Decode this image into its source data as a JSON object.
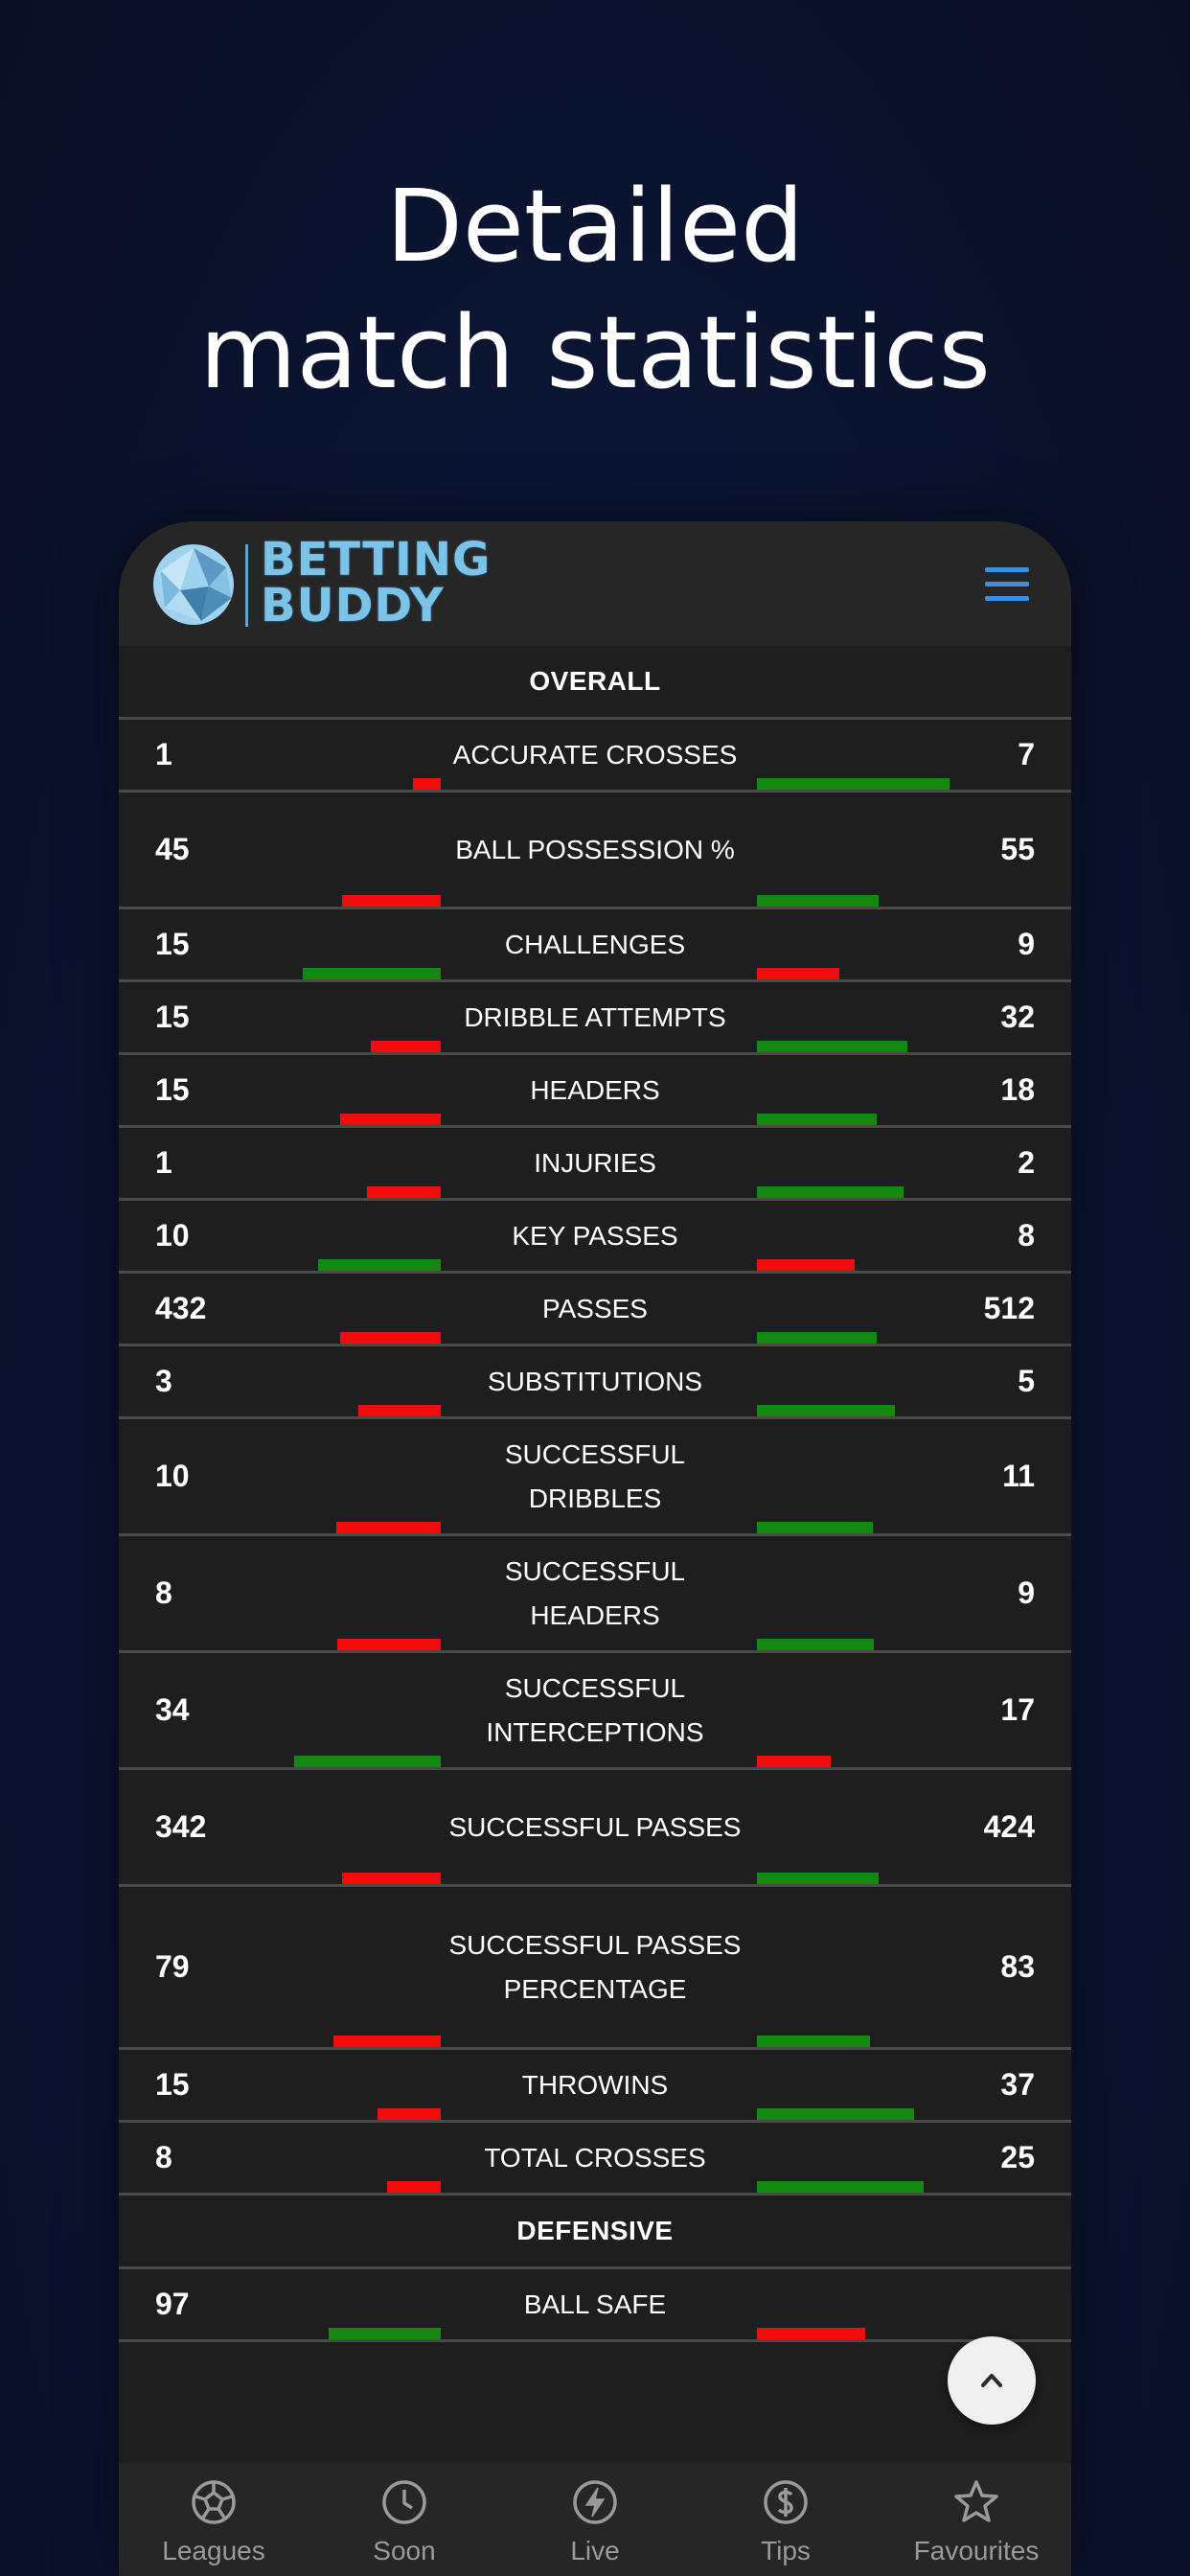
{
  "headline": [
    "Detailed",
    "match statistics"
  ],
  "app": {
    "logo_text": [
      "BETTING",
      "BUDDY"
    ],
    "menu_icon": "hamburger-menu-icon"
  },
  "colors": {
    "higher": "#138a0f",
    "lower": "#f20c0c",
    "accent": "#3d8fe0"
  },
  "sections": [
    {
      "title": "OVERALL",
      "rows": [
        {
          "label": "ACCURATE CROSSES",
          "home": "1",
          "away": "7",
          "home_pct": 12.5,
          "away_pct": 87.5
        },
        {
          "label": "BALL POSSESSION %",
          "home": "45",
          "away": "55",
          "home_pct": 45,
          "away_pct": 55
        },
        {
          "label": "CHALLENGES",
          "home": "15",
          "away": "9",
          "home_pct": 62.5,
          "away_pct": 37.5
        },
        {
          "label": "DRIBBLE ATTEMPTS",
          "home": "15",
          "away": "32",
          "home_pct": 31.9,
          "away_pct": 68.1
        },
        {
          "label": "HEADERS",
          "home": "15",
          "away": "18",
          "home_pct": 45.5,
          "away_pct": 54.5
        },
        {
          "label": "INJURIES",
          "home": "1",
          "away": "2",
          "home_pct": 33.3,
          "away_pct": 66.7
        },
        {
          "label": "KEY PASSES",
          "home": "10",
          "away": "8",
          "home_pct": 55.6,
          "away_pct": 44.4
        },
        {
          "label": "PASSES",
          "home": "432",
          "away": "512",
          "home_pct": 45.8,
          "away_pct": 54.2
        },
        {
          "label": "SUBSTITUTIONS",
          "home": "3",
          "away": "5",
          "home_pct": 37.5,
          "away_pct": 62.5
        },
        {
          "label": "SUCCESSFUL DRIBBLES",
          "home": "10",
          "away": "11",
          "home_pct": 47.6,
          "away_pct": 52.4
        },
        {
          "label": "SUCCESSFUL HEADERS",
          "home": "8",
          "away": "9",
          "home_pct": 47.1,
          "away_pct": 52.9
        },
        {
          "label": "SUCCESSFUL INTERCEPTIONS",
          "home": "34",
          "away": "17",
          "home_pct": 66.7,
          "away_pct": 33.3
        },
        {
          "label": "SUCCESSFUL PASSES",
          "home": "342",
          "away": "424",
          "home_pct": 44.6,
          "away_pct": 55.4
        },
        {
          "label": "SUCCESSFUL PASSES PERCENTAGE",
          "home": "79",
          "away": "83",
          "home_pct": 48.8,
          "away_pct": 51.2
        },
        {
          "label": "THROWINS",
          "home": "15",
          "away": "37",
          "home_pct": 28.8,
          "away_pct": 71.2
        },
        {
          "label": "TOTAL CROSSES",
          "home": "8",
          "away": "25",
          "home_pct": 24.2,
          "away_pct": 75.8
        }
      ]
    },
    {
      "title": "DEFENSIVE",
      "rows": [
        {
          "label": "BALL SAFE",
          "home": "97",
          "away": "",
          "home_pct": 51,
          "away_pct": 49
        }
      ]
    }
  ],
  "nav": [
    {
      "label": "Leagues",
      "icon": "soccer-ball-icon"
    },
    {
      "label": "Soon",
      "icon": "clock-icon"
    },
    {
      "label": "Live",
      "icon": "lightning-icon"
    },
    {
      "label": "Tips",
      "icon": "dollar-icon"
    },
    {
      "label": "Favourites",
      "icon": "star-icon"
    }
  ],
  "fab_icon": "chevron-up-icon"
}
